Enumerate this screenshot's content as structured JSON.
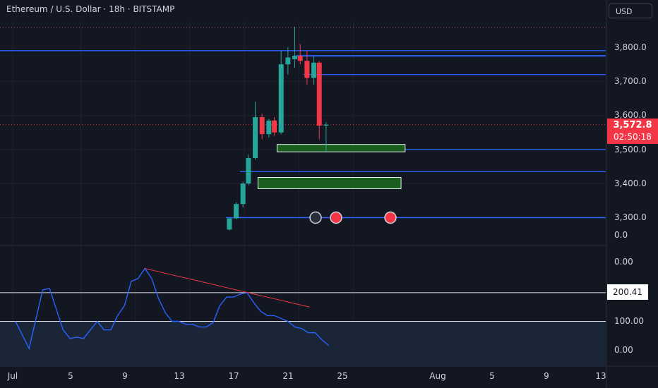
{
  "header": {
    "symbol_title": "Ethereum / U.S. Dollar · 18h · BITSTAMP",
    "currency": "USD"
  },
  "price_axis": {
    "labels": [
      "3,800.0",
      "3,700.0",
      "3,600.0",
      "3,500.0",
      "3,400.0",
      "3,300.0",
      "0.0"
    ]
  },
  "last_price": {
    "value": "3,572.8",
    "countdown": "02:50:18"
  },
  "indicator_axis": {
    "labels": [
      "0.00",
      "100.00",
      "0.00"
    ],
    "marked_value": "200.41"
  },
  "time_axis": {
    "labels": [
      "Jul",
      "5",
      "9",
      "13",
      "17",
      "21",
      "25",
      "Aug",
      "5",
      "9",
      "13"
    ]
  },
  "colors": {
    "background": "#131722",
    "up": "#26a69a",
    "down": "#f23645",
    "level_line": "#2962ff",
    "zone_fill": "#1b5e20",
    "indicator_line": "#2962ff",
    "trend_line": "#f23645"
  },
  "chart_data": {
    "type": "candlestick",
    "price_range": [
      3240,
      3900
    ],
    "candles": [
      {
        "t": 15.9,
        "o": 3265,
        "h": 3300,
        "l": 3262,
        "c": 3298
      },
      {
        "t": 16.4,
        "o": 3298,
        "h": 3345,
        "l": 3295,
        "c": 3340
      },
      {
        "t": 16.9,
        "o": 3340,
        "h": 3405,
        "l": 3330,
        "c": 3400
      },
      {
        "t": 17.3,
        "o": 3400,
        "h": 3485,
        "l": 3395,
        "c": 3475
      },
      {
        "t": 17.8,
        "o": 3475,
        "h": 3640,
        "l": 3470,
        "c": 3595
      },
      {
        "t": 18.3,
        "o": 3595,
        "h": 3605,
        "l": 3530,
        "c": 3545
      },
      {
        "t": 18.8,
        "o": 3545,
        "h": 3590,
        "l": 3535,
        "c": 3585
      },
      {
        "t": 19.2,
        "o": 3585,
        "h": 3595,
        "l": 3540,
        "c": 3550
      },
      {
        "t": 19.7,
        "o": 3550,
        "h": 3790,
        "l": 3545,
        "c": 3750
      },
      {
        "t": 20.2,
        "o": 3750,
        "h": 3800,
        "l": 3720,
        "c": 3770
      },
      {
        "t": 20.7,
        "o": 3765,
        "h": 3860,
        "l": 3740,
        "c": 3775
      },
      {
        "t": 21.1,
        "o": 3775,
        "h": 3810,
        "l": 3750,
        "c": 3760
      },
      {
        "t": 21.6,
        "o": 3760,
        "h": 3790,
        "l": 3690,
        "c": 3710
      },
      {
        "t": 22.1,
        "o": 3710,
        "h": 3775,
        "l": 3690,
        "c": 3755
      },
      {
        "t": 22.5,
        "o": 3755,
        "h": 3760,
        "l": 3530,
        "c": 3570
      },
      {
        "t": 23.0,
        "o": 3570,
        "h": 3580,
        "l": 3495,
        "c": 3572.8
      }
    ],
    "levels": [
      3790,
      3775,
      3720,
      3500,
      3435,
      3300
    ],
    "zones": [
      {
        "from_t": 19.4,
        "to_t": 28.8,
        "low": 3493,
        "high": 3515
      },
      {
        "from_t": 18.0,
        "to_t": 28.5,
        "low": 3385,
        "high": 3418
      }
    ],
    "indicator": {
      "marked_value": 200.41,
      "reference_level": 100.0,
      "line": [
        {
          "t": 0.2,
          "v": 100
        },
        {
          "t": 1.2,
          "v": 5
        },
        {
          "t": 2.2,
          "v": 210
        },
        {
          "t": 2.7,
          "v": 215
        },
        {
          "t": 3.7,
          "v": 70
        },
        {
          "t": 4.2,
          "v": 40
        },
        {
          "t": 4.7,
          "v": 45
        },
        {
          "t": 5.2,
          "v": 40
        },
        {
          "t": 6.2,
          "v": 100
        },
        {
          "t": 6.7,
          "v": 70
        },
        {
          "t": 7.2,
          "v": 70
        },
        {
          "t": 7.7,
          "v": 120
        },
        {
          "t": 8.2,
          "v": 155
        },
        {
          "t": 8.7,
          "v": 240
        },
        {
          "t": 9.2,
          "v": 250
        },
        {
          "t": 9.7,
          "v": 285
        },
        {
          "t": 10.2,
          "v": 250
        },
        {
          "t": 10.7,
          "v": 180
        },
        {
          "t": 11.2,
          "v": 130
        },
        {
          "t": 11.7,
          "v": 100
        },
        {
          "t": 12.2,
          "v": 100
        },
        {
          "t": 12.7,
          "v": 90
        },
        {
          "t": 13.2,
          "v": 90
        },
        {
          "t": 13.7,
          "v": 80
        },
        {
          "t": 14.2,
          "v": 80
        },
        {
          "t": 14.7,
          "v": 95
        },
        {
          "t": 15.2,
          "v": 155
        },
        {
          "t": 15.7,
          "v": 185
        },
        {
          "t": 16.2,
          "v": 185
        },
        {
          "t": 16.7,
          "v": 195
        },
        {
          "t": 17.2,
          "v": 200
        },
        {
          "t": 17.7,
          "v": 165
        },
        {
          "t": 18.2,
          "v": 135
        },
        {
          "t": 18.7,
          "v": 120
        },
        {
          "t": 19.2,
          "v": 120
        },
        {
          "t": 19.7,
          "v": 110
        },
        {
          "t": 20.2,
          "v": 100
        },
        {
          "t": 20.7,
          "v": 80
        },
        {
          "t": 21.2,
          "v": 75
        },
        {
          "t": 21.7,
          "v": 60
        },
        {
          "t": 22.2,
          "v": 60
        },
        {
          "t": 22.7,
          "v": 35
        },
        {
          "t": 23.2,
          "v": 15
        }
      ],
      "trendline": [
        {
          "t": 9.7,
          "v": 285
        },
        {
          "t": 21.8,
          "v": 150
        }
      ]
    }
  }
}
